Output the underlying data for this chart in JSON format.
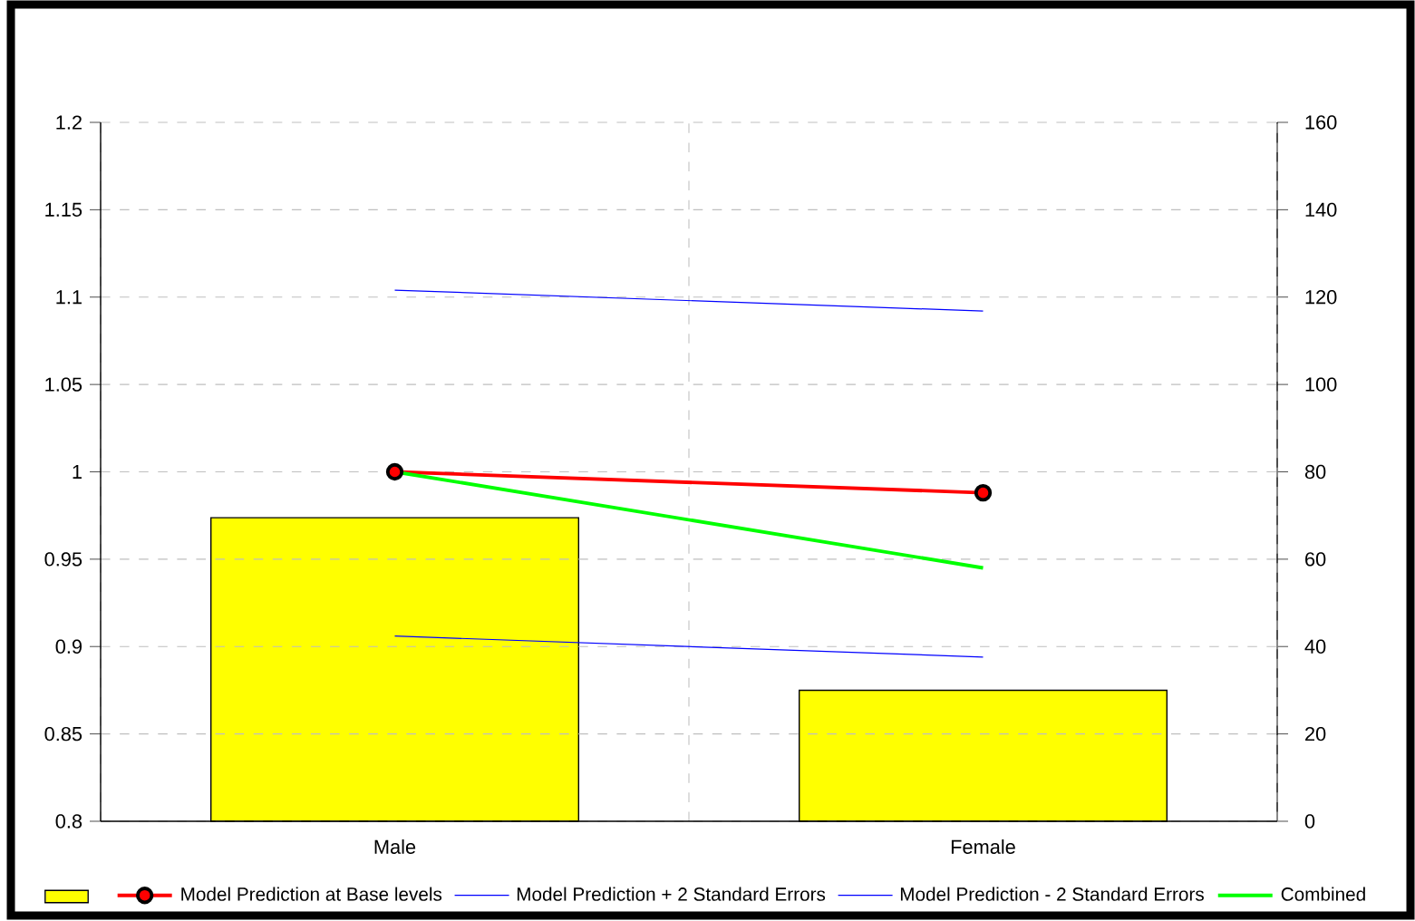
{
  "chart_data": {
    "type": "line",
    "categories": [
      "Male",
      "Female"
    ],
    "ylim": [
      0.8,
      1.2
    ],
    "yticks": [
      0.8,
      0.85,
      0.9,
      0.95,
      1,
      1.05,
      1.1,
      1.15,
      1.2
    ],
    "y2lim": [
      0,
      160
    ],
    "y2ticks": [
      0,
      20,
      40,
      60,
      80,
      100,
      120,
      140,
      160
    ],
    "grid": true,
    "legend": "bottom",
    "series": [
      {
        "type": "bar",
        "axis": "y2",
        "color": "#ffff00",
        "values": [
          69.5,
          30
        ]
      },
      {
        "name": "Model Prediction at Base levels",
        "color": "#ff0000",
        "marker": "circle",
        "values": [
          1.0,
          0.988
        ]
      },
      {
        "name": "Model Prediction + 2 Standard Errors",
        "color": "#0000ff",
        "values": [
          1.104,
          1.092
        ]
      },
      {
        "name": "Model Prediction - 2 Standard Errors",
        "color": "#0000ff",
        "values": [
          0.906,
          0.894
        ]
      },
      {
        "name": "Combined",
        "color": "#00ff00",
        "values": [
          1.0,
          0.945
        ]
      }
    ]
  }
}
